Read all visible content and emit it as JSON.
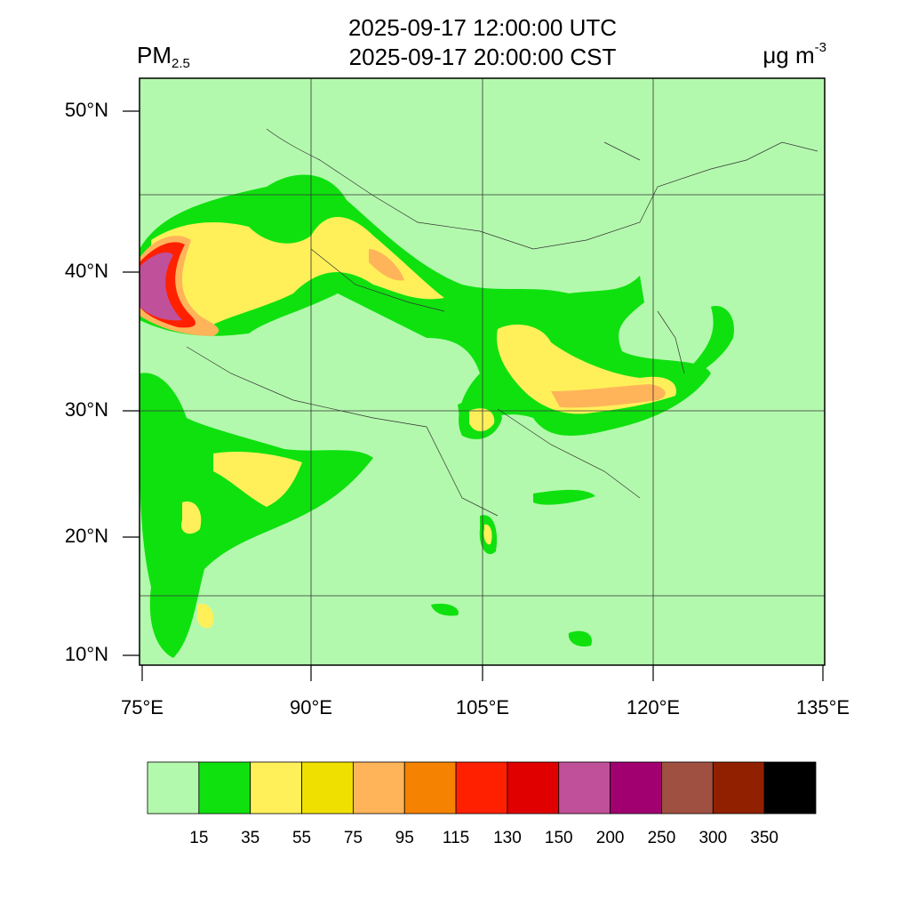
{
  "header": {
    "title_lines": [
      "2025-09-17 12:00:00 UTC",
      "2025-09-17 20:00:00 CST"
    ],
    "left_label": "PM",
    "left_label_sub": "2.5",
    "right_label": "μg m",
    "right_label_sup": "-3"
  },
  "map": {
    "lat_labels": [
      "50°N",
      "40°N",
      "30°N",
      "20°N",
      "10°N"
    ],
    "lon_labels": [
      "75°E",
      "90°E",
      "105°E",
      "120°E",
      "135°E"
    ]
  },
  "colorbar": {
    "colors": [
      "#b3f9ad",
      "#0fe10f",
      "#fff05a",
      "#f0e000",
      "#ffb45a",
      "#f58200",
      "#ff2000",
      "#e00000",
      "#c0509a",
      "#a00070",
      "#a05040",
      "#902000",
      "#000000"
    ],
    "levels": [
      15,
      35,
      55,
      75,
      95,
      115,
      130,
      150,
      200,
      250,
      300,
      350
    ]
  }
}
